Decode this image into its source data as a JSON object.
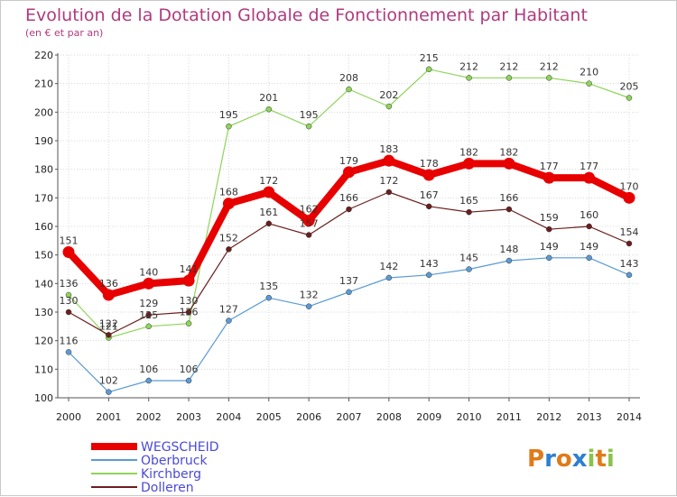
{
  "page": {
    "title": "Evolution de la Dotation Globale de Fonctionnement par Habitant",
    "subtitle": "(en € et par an)",
    "brand": [
      "P",
      "r",
      "o",
      "x",
      "i",
      "t",
      "i"
    ]
  },
  "chart_data": {
    "type": "line",
    "title": "Evolution de la Dotation Globale de Fonctionnement par Habitant",
    "subtitle": "(en € et par an)",
    "xlabel": "",
    "ylabel": "",
    "x": [
      "2000",
      "2001",
      "2002",
      "2003",
      "2004",
      "2005",
      "2006",
      "2007",
      "2008",
      "2009",
      "2010",
      "2011",
      "2012",
      "2013",
      "2014"
    ],
    "ylim": [
      100,
      220
    ],
    "yticks": [
      100,
      110,
      120,
      130,
      140,
      150,
      160,
      170,
      180,
      190,
      200,
      210,
      220
    ],
    "grid": true,
    "legend_position": "bottom-left",
    "series": [
      {
        "name": "WEGSCHEID",
        "color": "#e80000",
        "emphasis": true,
        "values": [
          151,
          136,
          140,
          141,
          168,
          172,
          162,
          179,
          183,
          178,
          182,
          182,
          177,
          177,
          170
        ]
      },
      {
        "name": "Oberbruck",
        "color": "#5a9bd4",
        "emphasis": false,
        "values": [
          116,
          102,
          106,
          106,
          127,
          135,
          132,
          137,
          142,
          143,
          145,
          148,
          149,
          149,
          143
        ]
      },
      {
        "name": "Kirchberg",
        "color": "#8fd45a",
        "emphasis": false,
        "values": [
          136,
          121,
          125,
          126,
          195,
          201,
          195,
          208,
          202,
          215,
          212,
          212,
          212,
          210,
          205
        ]
      },
      {
        "name": "Dolleren",
        "color": "#6b1e1e",
        "emphasis": false,
        "values": [
          130,
          122,
          129,
          130,
          152,
          161,
          157,
          166,
          172,
          167,
          165,
          166,
          159,
          160,
          154
        ]
      }
    ],
    "data_labels": [
      {
        "series": 0,
        "labels": [
          "151",
          "136",
          "140",
          "141",
          "168",
          "172",
          "162",
          "179",
          "183",
          "178",
          "182",
          "182",
          "177",
          "177",
          "170"
        ]
      },
      {
        "series": 1,
        "labels": [
          "116",
          "102",
          "106",
          "106",
          "127",
          "135",
          "132",
          "137",
          "142",
          "143",
          "145",
          "148",
          "149",
          "149",
          "143"
        ]
      },
      {
        "series": 2,
        "labels": [
          "136",
          "121",
          "125",
          "126",
          "195",
          "201",
          "195",
          "208",
          "202",
          "215",
          "212",
          "212",
          "212",
          "210",
          "205"
        ]
      },
      {
        "series": 3,
        "labels": [
          "130",
          "122",
          "129",
          "130",
          "152",
          "161",
          "157",
          "166",
          "172",
          "167",
          "165",
          "166",
          "159",
          "160",
          "154"
        ]
      }
    ]
  }
}
